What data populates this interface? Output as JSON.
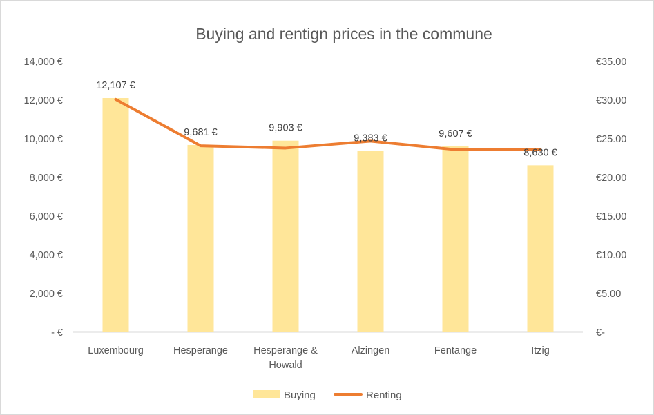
{
  "chart_data": {
    "type": "bar",
    "title": "Buying and rentign prices in the commune",
    "categories": [
      "Luxembourg",
      "Hesperange",
      "Hesperange & Howald",
      "Alzingen",
      "Fentange",
      "Itzig"
    ],
    "category_lines": [
      [
        "Luxembourg"
      ],
      [
        "Hesperange"
      ],
      [
        "Hesperange &",
        "Howald"
      ],
      [
        "Alzingen"
      ],
      [
        "Fentange"
      ],
      [
        "Itzig"
      ]
    ],
    "series": [
      {
        "name": "Buying",
        "type": "bar",
        "axis": "left",
        "color": "#ffe699",
        "values": [
          12107,
          9681,
          9903,
          9383,
          9607,
          8630
        ],
        "data_labels": [
          "12,107 €",
          "9,681 €",
          "9,903 €",
          "9,383 €",
          "9,607 €",
          "8,630 €"
        ]
      },
      {
        "name": "Renting",
        "type": "line",
        "axis": "right",
        "color": "#ed7d31",
        "values": [
          30.1,
          24.1,
          23.8,
          24.7,
          23.6,
          23.6
        ]
      }
    ],
    "y_left": {
      "ylim": [
        0,
        14000
      ],
      "ticks": [
        0,
        2000,
        4000,
        6000,
        8000,
        10000,
        12000,
        14000
      ],
      "tick_labels": [
        "-  €",
        "2,000 €",
        "4,000 €",
        "6,000 €",
        "8,000 €",
        "10,000 €",
        "12,000 €",
        "14,000 €"
      ]
    },
    "y_right": {
      "ylim": [
        0,
        35
      ],
      "ticks": [
        0,
        5,
        10,
        15,
        20,
        25,
        30,
        35
      ],
      "tick_labels": [
        "€-",
        "€5.00",
        "€10.00",
        "€15.00",
        "€20.00",
        "€25.00",
        "€30.00",
        "€35.00"
      ]
    },
    "xlabel": "",
    "ylabel": "",
    "grid": false,
    "legend_position": "bottom"
  }
}
